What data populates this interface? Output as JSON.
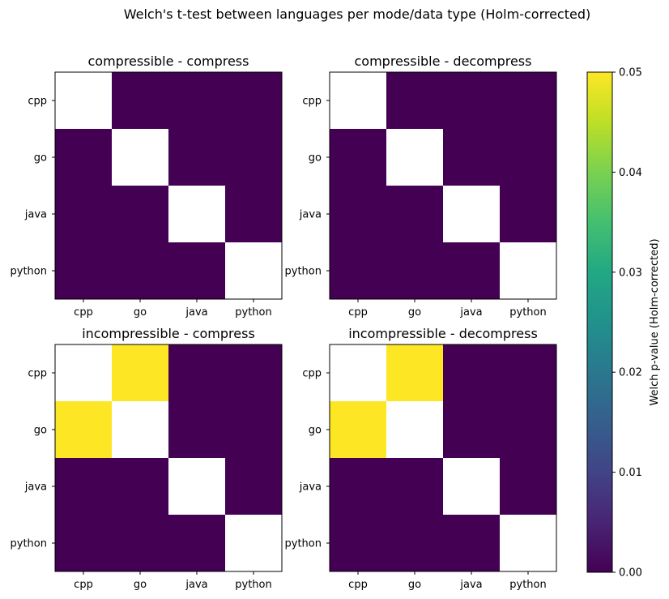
{
  "chart_data": {
    "type": "heatmap",
    "title": "Welch's t-test between languages per mode/data type (Holm-corrected)",
    "categories": [
      "cpp",
      "go",
      "java",
      "python"
    ],
    "colorbar": {
      "label": "Welch p-value (Holm-corrected)",
      "range": [
        0,
        0.05
      ],
      "ticks": [
        "0.00",
        "0.01",
        "0.02",
        "0.03",
        "0.04",
        "0.05"
      ],
      "colormap": "viridis"
    },
    "panels": [
      {
        "title": "compressible - compress",
        "matrix": [
          [
            null,
            0,
            0,
            0
          ],
          [
            0,
            null,
            0,
            0
          ],
          [
            0,
            0,
            null,
            0
          ],
          [
            0,
            0,
            0,
            null
          ]
        ]
      },
      {
        "title": "compressible - decompress",
        "matrix": [
          [
            null,
            0,
            0,
            0
          ],
          [
            0,
            null,
            0,
            0
          ],
          [
            0,
            0,
            null,
            0
          ],
          [
            0,
            0,
            0,
            null
          ]
        ]
      },
      {
        "title": "incompressible - compress",
        "matrix": [
          [
            null,
            0.05,
            0,
            0
          ],
          [
            0.05,
            null,
            0,
            0
          ],
          [
            0,
            0,
            null,
            0
          ],
          [
            0,
            0,
            0,
            null
          ]
        ]
      },
      {
        "title": "incompressible - decompress",
        "matrix": [
          [
            null,
            0.05,
            0,
            0
          ],
          [
            0.05,
            null,
            0,
            0
          ],
          [
            0,
            0,
            null,
            0
          ],
          [
            0,
            0,
            0,
            null
          ]
        ]
      }
    ]
  }
}
